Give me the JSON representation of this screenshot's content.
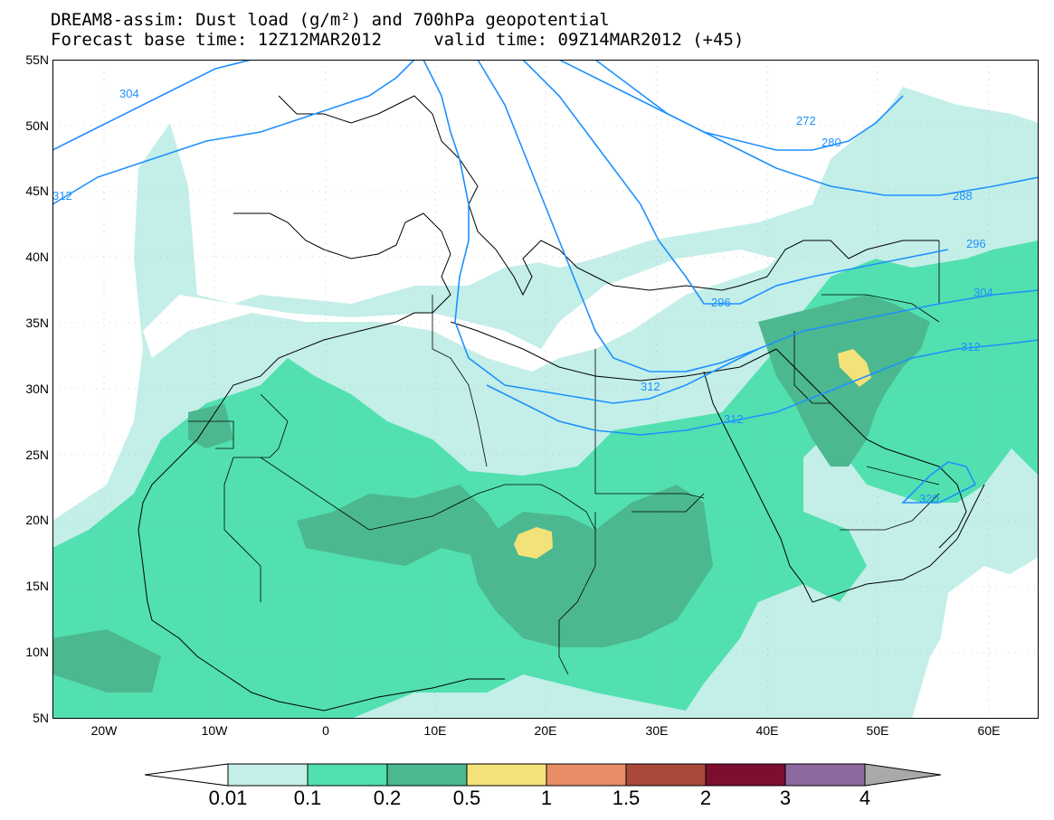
{
  "title_line1": "DREAM8-assim: Dust load (g/m²) and 700hPa geopotential",
  "title_line2": "Forecast base time: 12Z12MAR2012     valid time: 09Z14MAR2012 (+45)",
  "lat_labels": [
    "55N",
    "50N",
    "45N",
    "40N",
    "35N",
    "30N",
    "25N",
    "20N",
    "15N",
    "10N",
    "5N"
  ],
  "lon_labels": [
    "20W",
    "10W",
    "0",
    "10E",
    "20E",
    "30E",
    "40E",
    "50E",
    "60E"
  ],
  "contour_labels": [
    "304",
    "312",
    "296",
    "272",
    "280",
    "288",
    "296",
    "304",
    "312",
    "296",
    "304",
    "312",
    "320"
  ],
  "colorbar": {
    "labels": [
      "0.01",
      "0.1",
      "0.2",
      "0.5",
      "1",
      "1.5",
      "2",
      "3",
      "4"
    ],
    "colors": [
      "#c3efe8",
      "#52e0b0",
      "#4cb88f",
      "#f3e27a",
      "#e88d66",
      "#a9493a",
      "#7e0e2f",
      "#8c6aa0"
    ]
  },
  "colors": {
    "ocean": "#ffffff",
    "dust_001": "#c3efe8",
    "dust_01": "#52e0b0",
    "dust_02": "#4cb88f",
    "dust_05": "#f3e27a",
    "contour": "#1e90ff"
  }
}
